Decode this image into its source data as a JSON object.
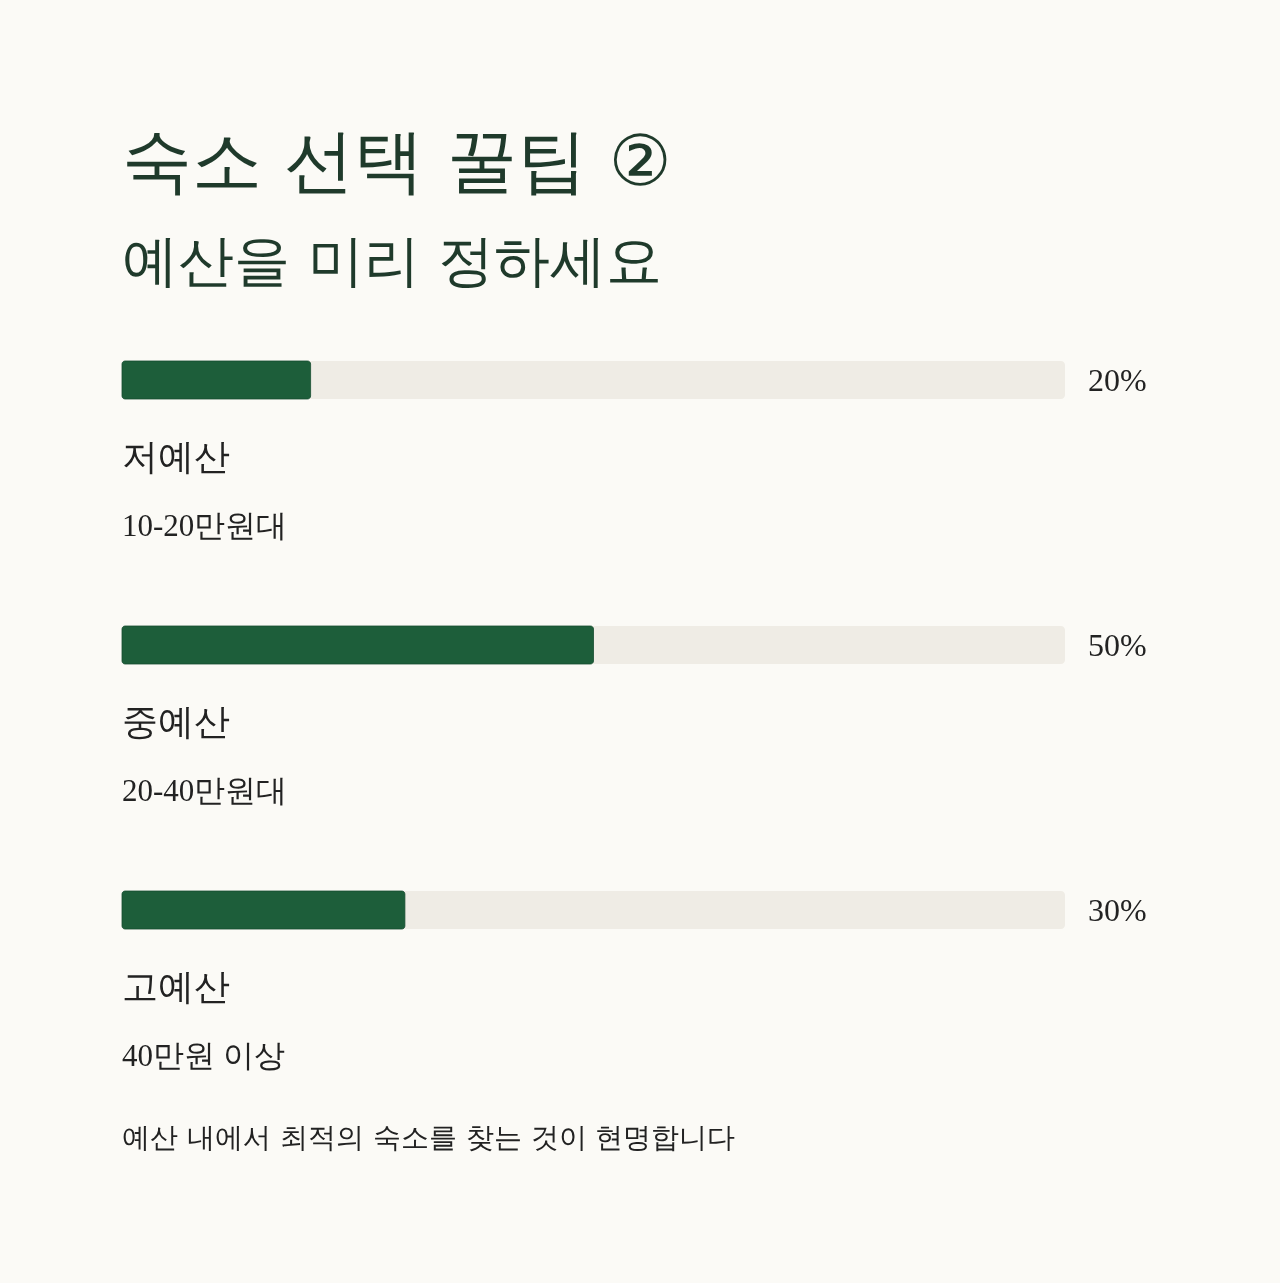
{
  "chart_data": {
    "type": "bar",
    "orientation": "horizontal",
    "title": "숙소 선택 꿀팁 ②",
    "subtitle": "예산을 미리 정하세요",
    "categories": [
      "저예산",
      "중예산",
      "고예산"
    ],
    "values": [
      20,
      50,
      30
    ],
    "color": "#1d5e3a",
    "value_labels": [
      "20%",
      "50%",
      "30%"
    ],
    "xlim": [
      0,
      100
    ],
    "tick_labels": "y",
    "bands": [
      {
        "axis": "x",
        "from": 0,
        "to": 100,
        "color": "#efece5"
      }
    ],
    "annotations": [
      "10-20만원대",
      "20-40만원대",
      "40만원 이상",
      "예산 내에서 최적의 숙소를 찾는 것이 현명합니다"
    ]
  }
}
